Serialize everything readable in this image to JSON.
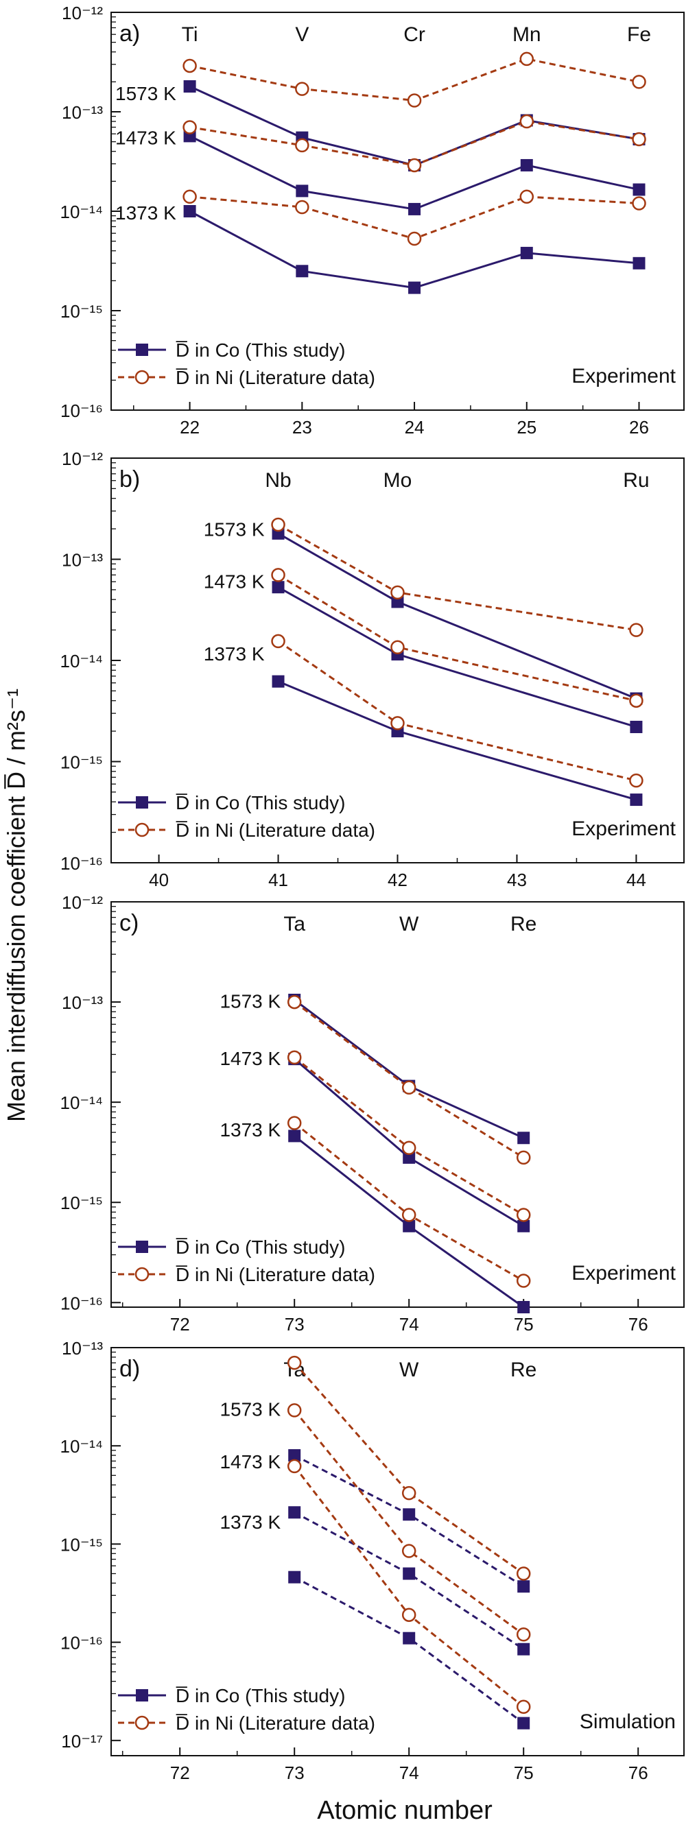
{
  "figure": {
    "ylabel": "Mean interdiffusion coefficient D̅ / m²s⁻¹",
    "xlabel": "Atomic number",
    "colors": {
      "co": "#2b1a6b",
      "ni": "#a43a12",
      "axis": "#111111"
    }
  },
  "chart_data": [
    {
      "type": "line",
      "panel_label": "a)",
      "note": "Experiment",
      "yscale": "log",
      "ylim": [
        1e-16,
        1e-12
      ],
      "xlim": [
        21.3,
        26.4
      ],
      "x_ticks": [
        22,
        23,
        24,
        25,
        26
      ],
      "y_ticks": [
        "10⁻¹⁶",
        "10⁻¹⁵",
        "10⁻¹⁴",
        "10⁻¹³",
        "10⁻¹²"
      ],
      "elements": [
        {
          "x": 22,
          "label": "Ti"
        },
        {
          "x": 23,
          "label": "V"
        },
        {
          "x": 24,
          "label": "Cr"
        },
        {
          "x": 25,
          "label": "Mn"
        },
        {
          "x": 26,
          "label": "Fe"
        }
      ],
      "temp_labels": [
        "1573 K",
        "1473 K",
        "1373 K"
      ],
      "legend": [
        {
          "symbol": "filled-square",
          "style": "solid",
          "text": "D̅ in Co (This study)"
        },
        {
          "symbol": "open-circle",
          "style": "dashed",
          "text": "D̅ in Ni (Literature data)"
        }
      ],
      "series": [
        {
          "host": "Co",
          "temp": "1573 K",
          "x": [
            22,
            23,
            24,
            25,
            26
          ],
          "values": [
            1.8e-13,
            5.5e-14,
            2.9e-14,
            8.2e-14,
            5.3e-14
          ]
        },
        {
          "host": "Co",
          "temp": "1473 K",
          "x": [
            22,
            23,
            24,
            25,
            26
          ],
          "values": [
            5.7e-14,
            1.6e-14,
            1.05e-14,
            2.9e-14,
            1.65e-14
          ]
        },
        {
          "host": "Co",
          "temp": "1373 K",
          "x": [
            22,
            23,
            24,
            25,
            26
          ],
          "values": [
            1e-14,
            2.5e-15,
            1.7e-15,
            3.8e-15,
            3e-15
          ]
        },
        {
          "host": "Ni",
          "temp": "1573 K",
          "x": [
            22,
            23,
            24,
            25,
            26
          ],
          "values": [
            2.9e-13,
            1.7e-13,
            1.3e-13,
            3.4e-13,
            2e-13
          ]
        },
        {
          "host": "Ni",
          "temp": "1473 K",
          "x": [
            22,
            23,
            24,
            25,
            26
          ],
          "values": [
            7e-14,
            4.6e-14,
            2.9e-14,
            8e-14,
            5.3e-14
          ]
        },
        {
          "host": "Ni",
          "temp": "1373 K",
          "x": [
            22,
            23,
            24,
            25,
            26
          ],
          "values": [
            1.4e-14,
            1.1e-14,
            5.3e-15,
            1.4e-14,
            1.2e-14
          ]
        }
      ]
    },
    {
      "type": "line",
      "panel_label": "b)",
      "note": "Experiment",
      "yscale": "log",
      "ylim": [
        1e-16,
        1e-12
      ],
      "xlim": [
        39.6,
        44.4
      ],
      "x_ticks": [
        40,
        41,
        42,
        43,
        44
      ],
      "y_ticks": [
        "10⁻¹⁶",
        "10⁻¹⁵",
        "10⁻¹⁴",
        "10⁻¹³",
        "10⁻¹²"
      ],
      "elements": [
        {
          "x": 41,
          "label": "Nb"
        },
        {
          "x": 42,
          "label": "Mo"
        },
        {
          "x": 44,
          "label": "Ru"
        }
      ],
      "temp_labels": [
        "1573 K",
        "1473 K",
        "1373 K"
      ],
      "legend": [
        {
          "symbol": "filled-square",
          "style": "solid",
          "text": "D̅ in Co (This study)"
        },
        {
          "symbol": "open-circle",
          "style": "dashed",
          "text": "D̅ in Ni  (Literature data)"
        }
      ],
      "series": [
        {
          "host": "Co",
          "temp": "1573 K",
          "x": [
            41,
            42,
            44
          ],
          "values": [
            1.8e-13,
            3.8e-14,
            4.2e-15
          ]
        },
        {
          "host": "Co",
          "temp": "1473 K",
          "x": [
            41,
            42,
            44
          ],
          "values": [
            5.3e-14,
            1.15e-14,
            2.2e-15
          ]
        },
        {
          "host": "Co",
          "temp": "1373 K",
          "x": [
            41,
            42,
            44
          ],
          "values": [
            6.2e-15,
            2e-15,
            4.2e-16
          ]
        },
        {
          "host": "Ni",
          "temp": "1573 K",
          "x": [
            41,
            42,
            44
          ],
          "values": [
            2.2e-13,
            4.7e-14,
            2e-14
          ]
        },
        {
          "host": "Ni",
          "temp": "1473 K",
          "x": [
            41,
            42,
            44
          ],
          "values": [
            7e-14,
            1.35e-14,
            4e-15
          ]
        },
        {
          "host": "Ni",
          "temp": "1373 K",
          "x": [
            41,
            42,
            44
          ],
          "values": [
            1.55e-14,
            2.4e-15,
            6.5e-16
          ]
        }
      ]
    },
    {
      "type": "line",
      "panel_label": "c)",
      "note": "Experiment",
      "yscale": "log",
      "ylim": [
        9e-17,
        1e-12
      ],
      "xlim": [
        71.4,
        76.4
      ],
      "x_ticks": [
        72,
        73,
        74,
        75,
        76
      ],
      "y_ticks": [
        "10⁻¹⁶",
        "10⁻¹⁵",
        "10⁻¹⁴",
        "10⁻¹³",
        "10⁻¹²"
      ],
      "elements": [
        {
          "x": 73,
          "label": "Ta"
        },
        {
          "x": 74,
          "label": "W"
        },
        {
          "x": 75,
          "label": "Re"
        }
      ],
      "temp_labels": [
        "1573 K",
        "1473 K",
        "1373 K"
      ],
      "legend": [
        {
          "symbol": "filled-square",
          "style": "solid",
          "text": "D̅ in Co (This study)"
        },
        {
          "symbol": "open-circle",
          "style": "dashed",
          "text": "D̅ in Ni  (Literature data)"
        }
      ],
      "series": [
        {
          "host": "Co",
          "temp": "1573 K",
          "x": [
            73,
            74,
            75
          ],
          "values": [
            1.05e-13,
            1.45e-14,
            4.4e-15
          ]
        },
        {
          "host": "Co",
          "temp": "1473 K",
          "x": [
            73,
            74,
            75
          ],
          "values": [
            2.7e-14,
            2.8e-15,
            5.8e-16
          ]
        },
        {
          "host": "Co",
          "temp": "1373 K",
          "x": [
            73,
            74,
            75
          ],
          "values": [
            4.6e-15,
            5.8e-16,
            9e-17
          ]
        },
        {
          "host": "Ni",
          "temp": "1573 K",
          "x": [
            73,
            74,
            75
          ],
          "values": [
            1e-13,
            1.4e-14,
            2.8e-15
          ]
        },
        {
          "host": "Ni",
          "temp": "1473 K",
          "x": [
            73,
            74,
            75
          ],
          "values": [
            2.8e-14,
            3.5e-15,
            7.5e-16
          ]
        },
        {
          "host": "Ni",
          "temp": "1373 K",
          "x": [
            73,
            74,
            75
          ],
          "values": [
            6.2e-15,
            7.5e-16,
            1.65e-16
          ]
        }
      ]
    },
    {
      "type": "line",
      "panel_label": "d)",
      "note": "Simulation",
      "yscale": "log",
      "ylim": [
        7e-18,
        1e-13
      ],
      "xlim": [
        71.4,
        76.4
      ],
      "x_ticks": [
        72,
        73,
        74,
        75,
        76
      ],
      "y_ticks": [
        "10⁻¹⁷",
        "10⁻¹⁶",
        "10⁻¹⁵",
        "10⁻¹⁴",
        "10⁻¹³"
      ],
      "elements": [
        {
          "x": 73,
          "label": "Ta"
        },
        {
          "x": 74,
          "label": "W"
        },
        {
          "x": 75,
          "label": "Re"
        }
      ],
      "temp_labels": [
        "1573 K",
        "1473 K",
        "1373 K"
      ],
      "legend": [
        {
          "symbol": "filled-square",
          "style": "solid",
          "text": "D̅ in Co (This study)"
        },
        {
          "symbol": "open-circle",
          "style": "dashed",
          "text": "D̅ in Ni (Literature data)"
        }
      ],
      "series": [
        {
          "host": "Co",
          "temp": "1573 K",
          "x": [
            73,
            74,
            75
          ],
          "values": [
            8e-15,
            2e-15,
            3.7e-16
          ]
        },
        {
          "host": "Co",
          "temp": "1473 K",
          "x": [
            73,
            74,
            75
          ],
          "values": [
            2.1e-15,
            5e-16,
            8.5e-17
          ]
        },
        {
          "host": "Co",
          "temp": "1373 K",
          "x": [
            73,
            74,
            75
          ],
          "values": [
            4.6e-16,
            1.1e-16,
            1.5e-17
          ]
        },
        {
          "host": "Ni",
          "temp": "1573 K",
          "x": [
            73,
            74,
            75
          ],
          "values": [
            7e-14,
            3.3e-15,
            5e-16
          ]
        },
        {
          "host": "Ni",
          "temp": "1473 K",
          "x": [
            73,
            74,
            75
          ],
          "values": [
            2.3e-14,
            8.5e-16,
            1.2e-16
          ]
        },
        {
          "host": "Ni",
          "temp": "1373 K",
          "x": [
            73,
            74,
            75
          ],
          "values": [
            6.2e-15,
            1.9e-16,
            2.2e-17
          ]
        }
      ]
    }
  ]
}
